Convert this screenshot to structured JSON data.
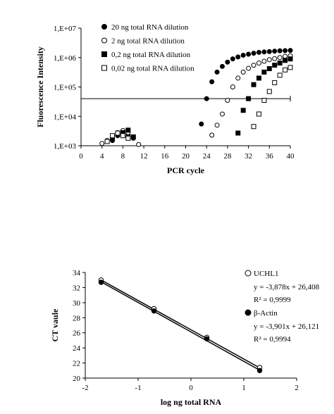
{
  "chart_data": [
    {
      "type": "scatter",
      "title": "",
      "xlabel": "PCR cycle",
      "ylabel": "Fluorescence Intensity",
      "x_ticks": [
        "0",
        "4",
        "8",
        "12",
        "16",
        "20",
        "24",
        "28",
        "32",
        "36",
        "40"
      ],
      "y_ticks": [
        "1,E+03",
        "1,E+04",
        "1,E+05",
        "1,E+06",
        "1,E+07"
      ],
      "xlim": [
        0,
        40
      ],
      "ylim": [
        1000,
        10000000
      ],
      "y_scale": "log",
      "threshold": 40000,
      "legend_position": "top",
      "series": [
        {
          "name": "20 ng total RNA dilution",
          "marker": "filled-circle",
          "points": [
            [
              6,
              1500
            ],
            [
              7,
              2200
            ],
            [
              8,
              2600
            ],
            [
              9,
              2300
            ],
            [
              10,
              1800
            ],
            [
              23,
              5500
            ],
            [
              24,
              40000
            ],
            [
              25,
              150000
            ],
            [
              26,
              320000
            ],
            [
              27,
              500000
            ],
            [
              28,
              700000
            ],
            [
              29,
              900000
            ],
            [
              30,
              1050000
            ],
            [
              31,
              1200000
            ],
            [
              32,
              1300000
            ],
            [
              33,
              1400000
            ],
            [
              34,
              1500000
            ],
            [
              35,
              1550000
            ],
            [
              36,
              1600000
            ],
            [
              37,
              1650000
            ],
            [
              38,
              1700000
            ],
            [
              39,
              1720000
            ],
            [
              40,
              1750000
            ]
          ]
        },
        {
          "name": "2 ng total RNA dilution",
          "marker": "open-circle",
          "points": [
            [
              4,
              1200
            ],
            [
              5,
              1500
            ],
            [
              6,
              2000
            ],
            [
              7,
              2800
            ],
            [
              8,
              3300
            ],
            [
              9,
              2800
            ],
            [
              10,
              1900
            ],
            [
              11,
              1100
            ],
            [
              25,
              2300
            ],
            [
              26,
              5000
            ],
            [
              27,
              12000
            ],
            [
              28,
              35000
            ],
            [
              29,
              100000
            ],
            [
              30,
              200000
            ],
            [
              31,
              320000
            ],
            [
              32,
              430000
            ],
            [
              33,
              550000
            ],
            [
              34,
              650000
            ],
            [
              35,
              750000
            ],
            [
              36,
              850000
            ],
            [
              37,
              920000
            ],
            [
              38,
              1000000
            ],
            [
              39,
              1100000
            ],
            [
              40,
              1150000
            ]
          ]
        },
        {
          "name": "0,2 ng total RNA dilution",
          "marker": "filled-square",
          "points": [
            [
              6,
              1800
            ],
            [
              7,
              2500
            ],
            [
              8,
              2800
            ],
            [
              9,
              3400
            ],
            [
              10,
              2000
            ],
            [
              30,
              2700
            ],
            [
              31,
              16000
            ],
            [
              32,
              40000
            ],
            [
              33,
              120000
            ],
            [
              34,
              200000
            ],
            [
              35,
              320000
            ],
            [
              36,
              420000
            ],
            [
              37,
              550000
            ],
            [
              38,
              650000
            ],
            [
              39,
              800000
            ],
            [
              40,
              900000
            ]
          ]
        },
        {
          "name": "0,02 ng total RNA dilution",
          "marker": "open-square",
          "points": [
            [
              5,
              1400
            ],
            [
              6,
              2200
            ],
            [
              7,
              2700
            ],
            [
              8,
              2200
            ],
            [
              9,
              1800
            ],
            [
              33,
              4500
            ],
            [
              34,
              12000
            ],
            [
              35,
              35000
            ],
            [
              36,
              70000
            ],
            [
              37,
              140000
            ],
            [
              38,
              250000
            ],
            [
              39,
              380000
            ],
            [
              40,
              460000
            ]
          ]
        }
      ]
    },
    {
      "type": "scatter",
      "title": "",
      "xlabel": "log ng total RNA",
      "ylabel": "CT vaule",
      "x_ticks": [
        "-2",
        "-1",
        "0",
        "1",
        "2"
      ],
      "y_ticks": [
        "20",
        "22",
        "24",
        "26",
        "28",
        "30",
        "32",
        "34"
      ],
      "xlim": [
        -2,
        2
      ],
      "ylim": [
        20,
        34
      ],
      "legend_position": "top-right",
      "series": [
        {
          "name": "UCHL1",
          "marker": "open-circle",
          "equation": "y = -3,878x + 26,408",
          "r2": "R² = 0,9999",
          "slope": -3.878,
          "intercept": 26.408,
          "points": [
            [
              -1.7,
              33.0
            ],
            [
              -0.7,
              29.2
            ],
            [
              0.3,
              25.4
            ],
            [
              1.3,
              21.4
            ]
          ]
        },
        {
          "name": "β-Actin",
          "marker": "filled-circle",
          "equation": "y = -3,901x + 26,121",
          "r2": "R² = 0,9994",
          "slope": -3.901,
          "intercept": 26.121,
          "points": [
            [
              -1.7,
              32.7
            ],
            [
              -0.7,
              28.9
            ],
            [
              0.3,
              25.2
            ],
            [
              1.3,
              21.0
            ]
          ]
        }
      ]
    }
  ]
}
